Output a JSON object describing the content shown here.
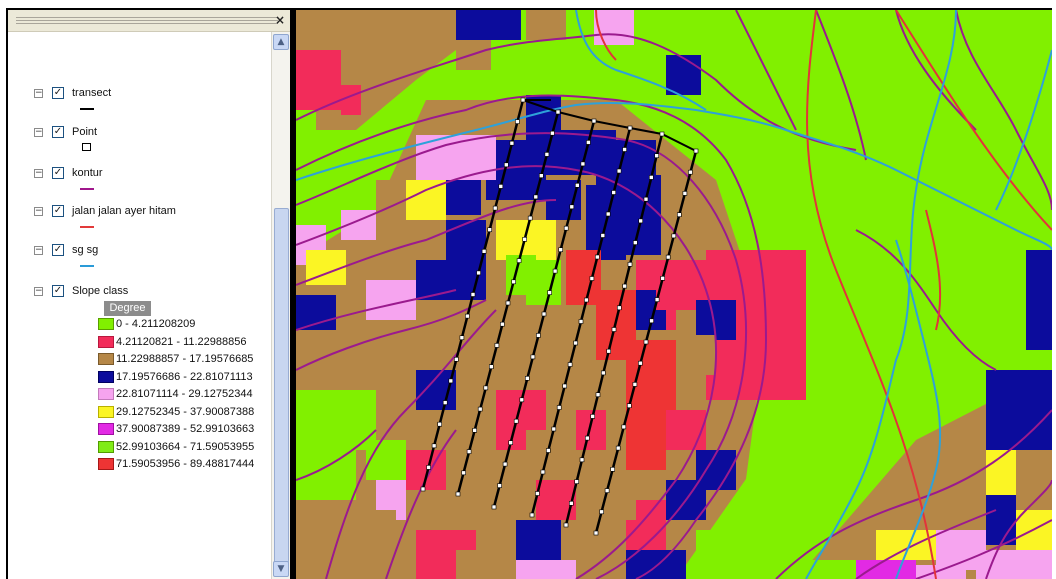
{
  "toc": {
    "close_glyph": "×",
    "scroll_up_glyph": "▲",
    "scroll_down_glyph": "▼",
    "layers": [
      {
        "name": "transect",
        "checked": true,
        "symbol": "line",
        "color": "#000000"
      },
      {
        "name": "Point",
        "checked": true,
        "symbol": "box",
        "color": "#000000"
      },
      {
        "name": "kontur",
        "checked": true,
        "symbol": "line",
        "color": "#a0178c"
      },
      {
        "name": "jalan jalan ayer hitam",
        "checked": true,
        "symbol": "line",
        "color": "#e23a3a"
      },
      {
        "name": "sg sg",
        "checked": true,
        "symbol": "line",
        "color": "#2a9bd8"
      },
      {
        "name": "Slope class",
        "checked": true,
        "symbol": "classes"
      }
    ],
    "slope_field": "Degree",
    "slope_classes": [
      {
        "label": "0 - 4.211208209",
        "color": "#81f000"
      },
      {
        "label": "4.21120821 - 11.22988856",
        "color": "#f22c5a"
      },
      {
        "label": "11.22988857 - 17.19576685",
        "color": "#b58747"
      },
      {
        "label": "17.19576686 - 22.81071113",
        "color": "#0c0c9c"
      },
      {
        "label": "22.81071114 - 29.12752344",
        "color": "#f6a4ef"
      },
      {
        "label": "29.12752345 - 37.90087388",
        "color": "#fbf524"
      },
      {
        "label": "37.90087389 - 52.99103663",
        "color": "#e22ae4"
      },
      {
        "label": "52.99103664 - 71.59053955",
        "color": "#80ec16"
      },
      {
        "label": "71.59053956 - 89.48817444",
        "color": "#ee3434"
      }
    ],
    "checkmark": "✓",
    "collapse_glyph": "−"
  },
  "map": {
    "transect_lines": 6
  }
}
